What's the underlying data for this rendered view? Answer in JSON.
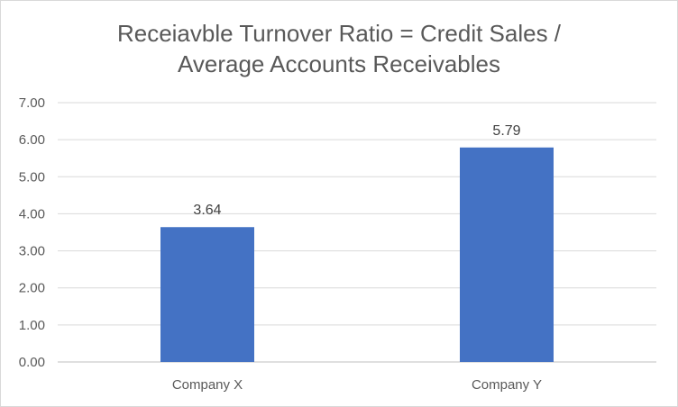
{
  "chart_data": {
    "type": "bar",
    "title_lines": [
      "Receiavble Turnover Ratio = Credit Sales /",
      "Average Accounts Receivables"
    ],
    "categories": [
      "Company X",
      "Company Y"
    ],
    "values": [
      3.64,
      5.79
    ],
    "data_labels": [
      "3.64",
      "5.79"
    ],
    "y_ticks": [
      "0.00",
      "1.00",
      "2.00",
      "3.00",
      "4.00",
      "5.00",
      "6.00",
      "7.00"
    ],
    "ylim": [
      0,
      7
    ],
    "grid": true,
    "legend": "none",
    "bar_color": "#4472c4",
    "xlabel": "",
    "ylabel": ""
  }
}
